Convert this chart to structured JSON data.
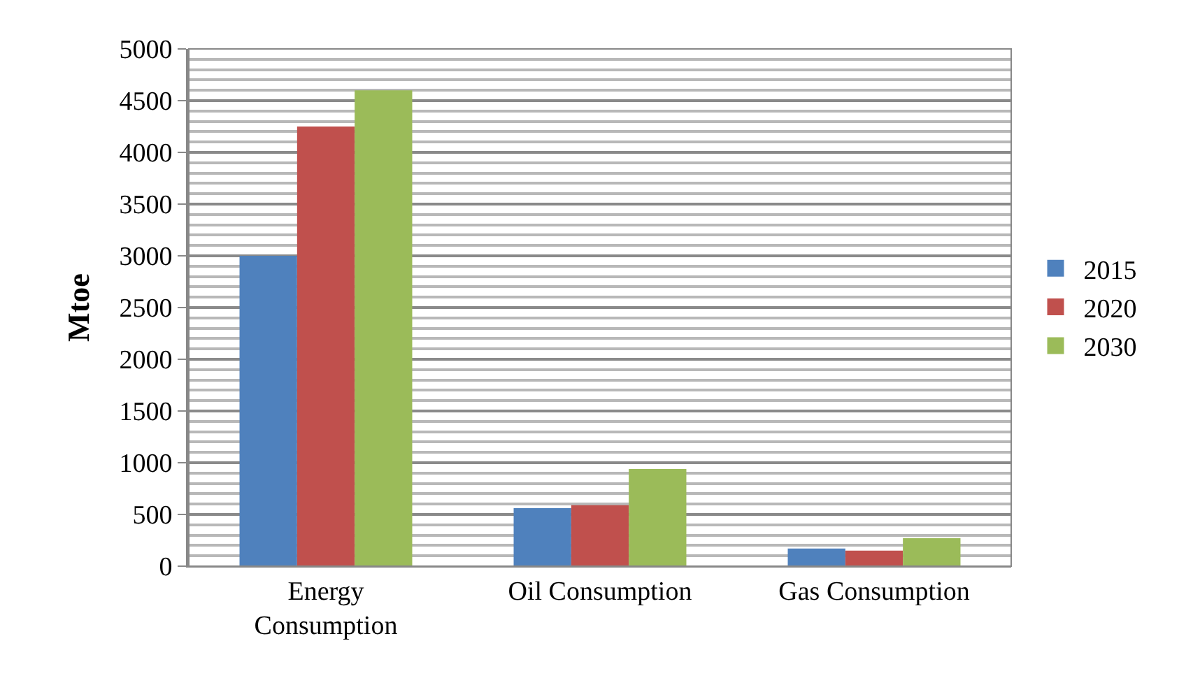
{
  "chart_data": {
    "type": "bar",
    "ylabel": "Mtoe",
    "categories": [
      "Energy\nConsumption",
      "Oil Consumption",
      "Gas Consumption"
    ],
    "series": [
      {
        "name": "2015",
        "color": "#4f81bd",
        "values": [
          3000,
          560,
          170
        ]
      },
      {
        "name": "2020",
        "color": "#c0504d",
        "values": [
          4250,
          590,
          150
        ]
      },
      {
        "name": "2030",
        "color": "#9bbb59",
        "values": [
          4600,
          940,
          270
        ]
      }
    ],
    "ylim": [
      0,
      5000
    ],
    "yticks": [
      0,
      500,
      1000,
      1500,
      2000,
      2500,
      3000,
      3500,
      4000,
      4500,
      5000
    ],
    "grid": "y",
    "legend": "right"
  }
}
